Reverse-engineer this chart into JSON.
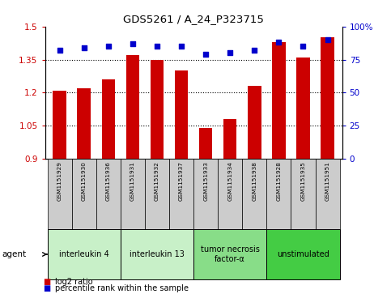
{
  "title": "GDS5261 / A_24_P323715",
  "samples": [
    "GSM1151929",
    "GSM1151930",
    "GSM1151936",
    "GSM1151931",
    "GSM1151932",
    "GSM1151937",
    "GSM1151933",
    "GSM1151934",
    "GSM1151938",
    "GSM1151928",
    "GSM1151935",
    "GSM1151951"
  ],
  "log2_values": [
    1.21,
    1.22,
    1.26,
    1.37,
    1.35,
    1.3,
    1.04,
    1.08,
    1.23,
    1.43,
    1.36,
    1.45
  ],
  "percentile_values": [
    82,
    84,
    85,
    87,
    85,
    85,
    79,
    80,
    82,
    88,
    85,
    90
  ],
  "bar_color": "#cc0000",
  "dot_color": "#0000cc",
  "baseline": 0.9,
  "ylim_left": [
    0.9,
    1.5
  ],
  "ylim_right": [
    0,
    100
  ],
  "yticks_left": [
    0.9,
    1.05,
    1.2,
    1.35,
    1.5
  ],
  "yticks_right": [
    0,
    25,
    50,
    75,
    100
  ],
  "ytick_labels_left": [
    "0.9",
    "1.05",
    "1.2",
    "1.35",
    "1.5"
  ],
  "ytick_labels_right": [
    "0",
    "25",
    "50",
    "75",
    "100%"
  ],
  "groups": [
    {
      "label": "interleukin 4",
      "start": 0,
      "end": 3,
      "color": "#c8f0c8"
    },
    {
      "label": "interleukin 13",
      "start": 3,
      "end": 6,
      "color": "#c8f0c8"
    },
    {
      "label": "tumor necrosis\nfactor-α",
      "start": 6,
      "end": 9,
      "color": "#88dd88"
    },
    {
      "label": "unstimulated",
      "start": 9,
      "end": 12,
      "color": "#44cc44"
    }
  ],
  "agent_label": "agent",
  "legend_bar_label": "log2 ratio",
  "legend_dot_label": "percentile rank within the sample",
  "background_color": "#ffffff",
  "tick_area_color": "#cccccc",
  "bar_width": 0.55
}
